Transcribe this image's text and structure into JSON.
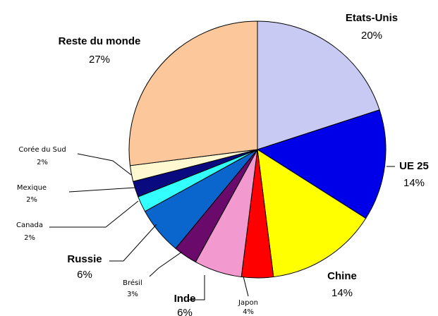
{
  "chart_data": {
    "type": "pie",
    "start_angle_deg": 0,
    "direction": "clockwise",
    "slices": [
      {
        "label": "Etats-Unis",
        "value": 20,
        "value_label": "20%",
        "color": "#c8caf4"
      },
      {
        "label": "UE 25",
        "value": 14,
        "value_label": "14%",
        "color": "#0000e8"
      },
      {
        "label": "Chine",
        "value": 14,
        "value_label": "14%",
        "color": "#ffff00"
      },
      {
        "label": "Japon",
        "value": 4,
        "value_label": "4%",
        "color": "#ff0000"
      },
      {
        "label": "Inde",
        "value": 6,
        "value_label": "6%",
        "color": "#f29ad0"
      },
      {
        "label": "Brésil",
        "value": 3,
        "value_label": "3%",
        "color": "#6a0a6a"
      },
      {
        "label": "Russie",
        "value": 6,
        "value_label": "6%",
        "color": "#0a66cc"
      },
      {
        "label": "Canada",
        "value": 2,
        "value_label": "2%",
        "color": "#33ffff"
      },
      {
        "label": "Mexique",
        "value": 2,
        "value_label": "2%",
        "color": "#0a0a80"
      },
      {
        "label": "Corée du Sud",
        "value": 2,
        "value_label": "2%",
        "color": "#fff8d0"
      },
      {
        "label": "Reste du monde",
        "value": 27,
        "value_label": "27%",
        "color": "#fcc79a"
      }
    ]
  }
}
